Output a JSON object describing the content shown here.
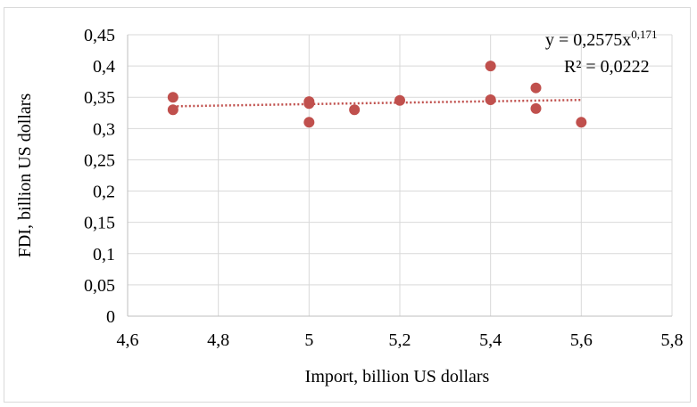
{
  "chart_data": {
    "type": "scatter",
    "title": "",
    "xlabel": "Import, billion US dollars",
    "ylabel": "FDI, billion US dollars",
    "xlim": [
      4.6,
      5.8
    ],
    "ylim": [
      0,
      0.45
    ],
    "x_ticks": [
      4.6,
      4.8,
      5.0,
      5.2,
      5.4,
      5.6,
      5.8
    ],
    "x_tick_labels": [
      "4,6",
      "4,8",
      "5",
      "5,2",
      "5,4",
      "5,6",
      "5,8"
    ],
    "y_ticks": [
      0,
      0.05,
      0.1,
      0.15,
      0.2,
      0.25,
      0.3,
      0.35,
      0.4,
      0.45
    ],
    "y_tick_labels": [
      "0",
      "0,05",
      "0,1",
      "0,15",
      "0,2",
      "0,25",
      "0,3",
      "0,35",
      "0,4",
      "0,45"
    ],
    "grid": true,
    "legend": "none",
    "series": [
      {
        "color": "#c0504d",
        "points": [
          {
            "x": 4.7,
            "y": 0.35
          },
          {
            "x": 4.7,
            "y": 0.33
          },
          {
            "x": 5.0,
            "y": 0.343
          },
          {
            "x": 5.0,
            "y": 0.34
          },
          {
            "x": 5.0,
            "y": 0.31
          },
          {
            "x": 5.1,
            "y": 0.33
          },
          {
            "x": 5.2,
            "y": 0.345
          },
          {
            "x": 5.4,
            "y": 0.4
          },
          {
            "x": 5.4,
            "y": 0.346
          },
          {
            "x": 5.5,
            "y": 0.365
          },
          {
            "x": 5.5,
            "y": 0.332
          },
          {
            "x": 5.6,
            "y": 0.31
          }
        ]
      }
    ],
    "trendline": {
      "type": "power",
      "coefficient": 0.2575,
      "exponent": 0.171,
      "x_range": [
        4.7,
        5.6
      ],
      "color": "#c0504d",
      "equation_base": "y = 0,2575x",
      "equation_exponent": "0,171",
      "r_squared_label": "R² = 0,0222"
    }
  }
}
